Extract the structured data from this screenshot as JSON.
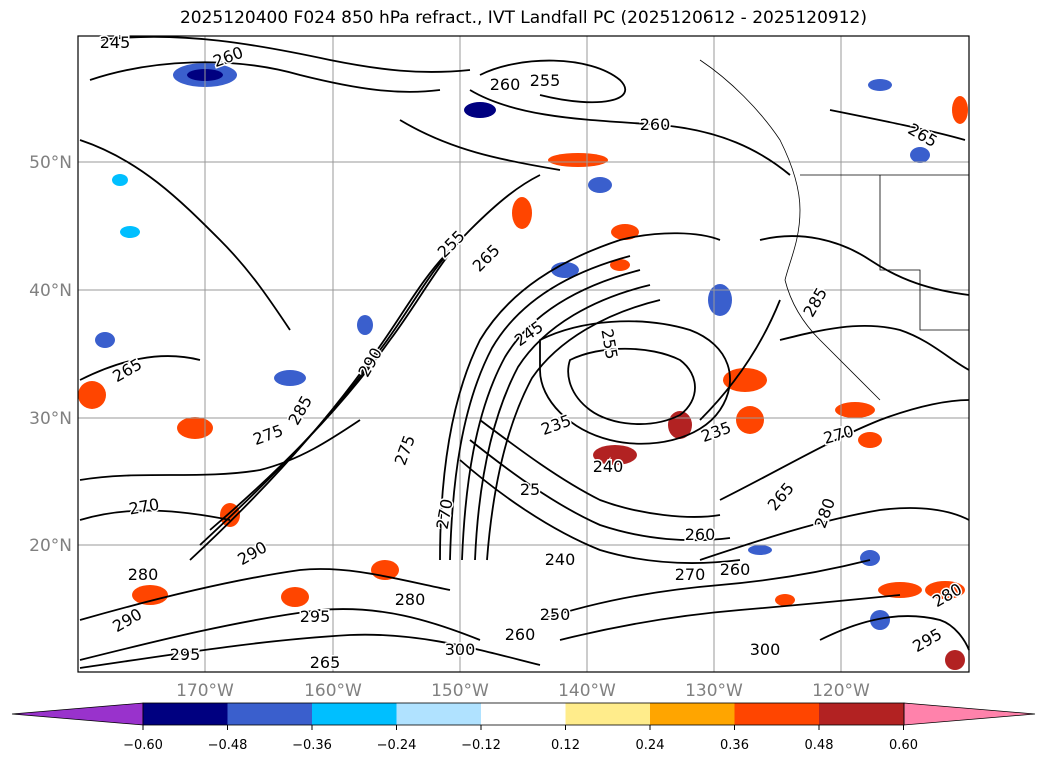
{
  "title": "2025120400 F024 850 hPa refract., IVT Landfall PC (2025120612 - 2025120912)",
  "map": {
    "lon_labels": [
      "170°W",
      "160°W",
      "150°W",
      "140°W",
      "130°W",
      "120°W"
    ],
    "lat_labels": [
      "50°N",
      "40°N",
      "30°N",
      "20°N"
    ],
    "contour_labels": [
      "245",
      "260",
      "255",
      "260",
      "265",
      "255",
      "265",
      "265",
      "260",
      "290",
      "275",
      "270",
      "245",
      "255",
      "235",
      "240",
      "235",
      "270",
      "285",
      "290",
      "285",
      "275",
      "280",
      "290",
      "295",
      "300",
      "295",
      "300",
      "265",
      "295",
      "280",
      "265",
      "260",
      "240",
      "270",
      "250",
      "280",
      "260",
      "270",
      "25",
      "280",
      "260"
    ],
    "colors": {
      "neg_extreme": "#9932cc",
      "neg_060": "#000080",
      "neg_048": "#3a5fcd",
      "neg_036": "#00bfff",
      "neg_024": "#b0e2ff",
      "neutral": "#ffffff",
      "pos_012": "#ffec8b",
      "pos_024": "#ffa500",
      "pos_036": "#ff4500",
      "pos_048": "#b22222",
      "pos_extreme": "#ff82ab",
      "contour": "#000000",
      "grid": "#999999"
    }
  },
  "colorbar": {
    "ticks": [
      "−0.60",
      "−0.48",
      "−0.36",
      "−0.24",
      "−0.12",
      "0.12",
      "0.24",
      "0.36",
      "0.48",
      "0.60"
    ],
    "colors": [
      "#9932cc",
      "#000080",
      "#3a5fcd",
      "#00bfff",
      "#b0e2ff",
      "#ffffff",
      "#ffec8b",
      "#ffa500",
      "#ff4500",
      "#b22222",
      "#ff82ab"
    ]
  }
}
